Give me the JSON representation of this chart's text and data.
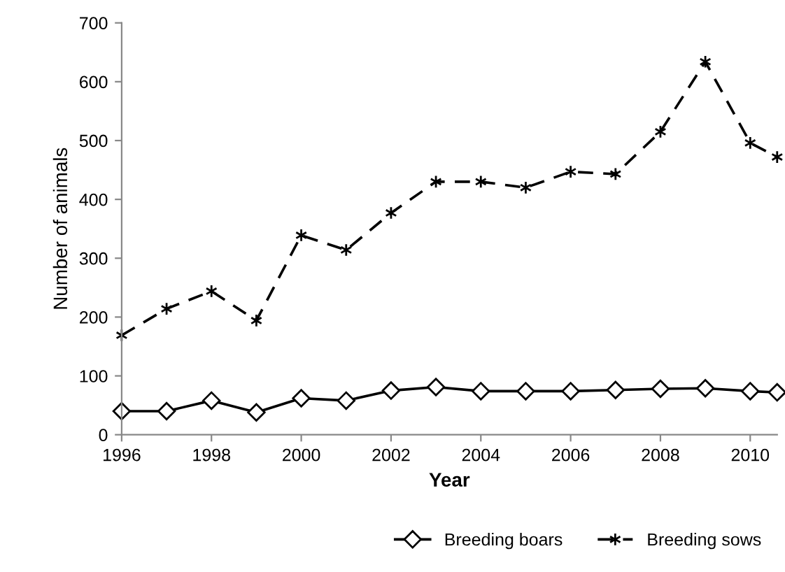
{
  "chart_data": {
    "type": "line",
    "xlabel": "Year",
    "ylabel": "Number of animals",
    "x": [
      1996,
      1997,
      1998,
      1999,
      2000,
      2001,
      2002,
      2003,
      2004,
      2005,
      2006,
      2007,
      2008,
      2009,
      2010,
      2010.6
    ],
    "series": [
      {
        "name": "Breeding boars",
        "color": "#000000",
        "marker": "diamond",
        "line_style": "solid",
        "values": [
          40,
          40,
          58,
          38,
          62,
          58,
          75,
          81,
          74,
          74,
          74,
          76,
          78,
          79,
          74,
          72
        ]
      },
      {
        "name": "Breeding sows",
        "color": "#000000",
        "marker": "cross",
        "line_style": "dashed",
        "values": [
          169,
          214,
          244,
          194,
          339,
          314,
          377,
          430,
          430,
          420,
          447,
          443,
          515,
          634,
          496,
          472
        ]
      }
    ],
    "xlim": [
      1996,
      2010.6
    ],
    "xticks": [
      1996,
      1998,
      2000,
      2002,
      2004,
      2006,
      2008,
      2010
    ],
    "ylim": [
      0,
      700
    ],
    "yticks": [
      0,
      100,
      200,
      300,
      400,
      500,
      600,
      700
    ],
    "grid": false,
    "legend": "bottom"
  }
}
